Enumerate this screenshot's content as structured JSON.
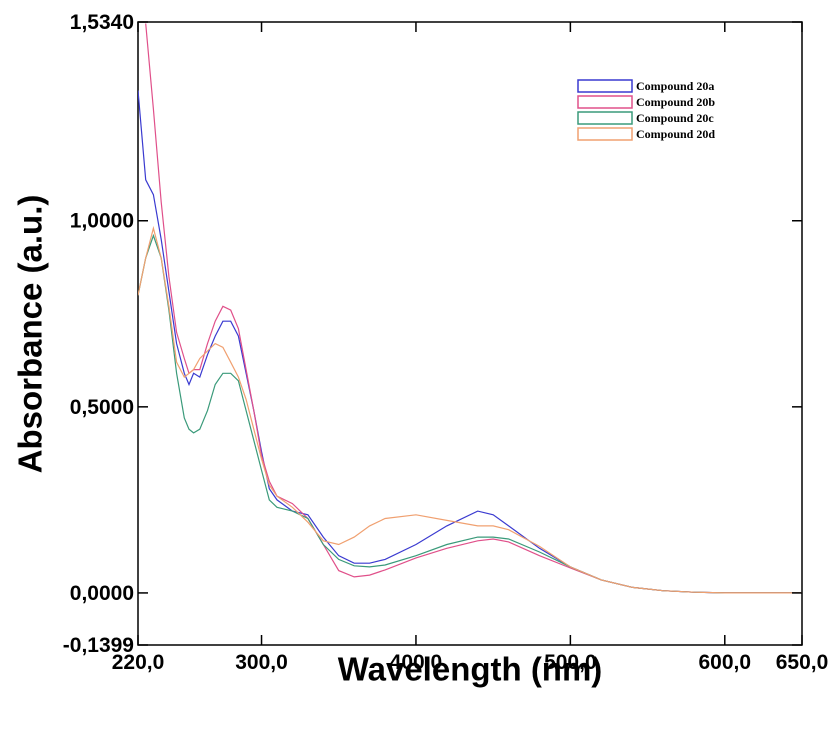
{
  "chart_data": {
    "type": "line",
    "x_label": "Wavelength (nm)",
    "y_label": "Absorbance (a.u.)",
    "xlim": [
      220,
      650
    ],
    "ylim": [
      -0.1399,
      1.534
    ],
    "xticks": [
      {
        "value": 220,
        "label": "220,0"
      },
      {
        "value": 300,
        "label": "300,0"
      },
      {
        "value": 400,
        "label": "400,0"
      },
      {
        "value": 500,
        "label": "500,0"
      },
      {
        "value": 600,
        "label": "600,0"
      },
      {
        "value": 650,
        "label": "650,0"
      }
    ],
    "yticks": [
      {
        "value": -0.1399,
        "label": "-0,1399"
      },
      {
        "value": 0,
        "label": "0,0000"
      },
      {
        "value": 0.5,
        "label": "0,5000"
      },
      {
        "value": 1,
        "label": "1,0000"
      },
      {
        "value": 1.534,
        "label": "1,5340"
      }
    ],
    "x": [
      220,
      225,
      230,
      235,
      240,
      245,
      250,
      253,
      256,
      260,
      265,
      270,
      275,
      280,
      285,
      290,
      295,
      300,
      305,
      310,
      320,
      330,
      340,
      350,
      360,
      370,
      380,
      400,
      420,
      440,
      450,
      460,
      480,
      500,
      520,
      540,
      560,
      580,
      600,
      650
    ],
    "series": [
      {
        "name": "Compound 20a",
        "color": "#3a3ad0",
        "values": [
          1.35,
          1.11,
          1.07,
          0.95,
          0.81,
          0.67,
          0.59,
          0.56,
          0.59,
          0.58,
          0.64,
          0.69,
          0.73,
          0.73,
          0.69,
          0.59,
          0.49,
          0.38,
          0.28,
          0.25,
          0.22,
          0.21,
          0.15,
          0.1,
          0.08,
          0.08,
          0.09,
          0.13,
          0.18,
          0.22,
          0.21,
          0.18,
          0.12,
          0.07,
          0.035,
          0.015,
          0.006,
          0.002,
          0,
          0
        ]
      },
      {
        "name": "Compound 20b",
        "color": "#e0508a",
        "values": [
          null,
          1.53,
          1.3,
          1.05,
          0.85,
          0.7,
          0.63,
          0.59,
          0.6,
          0.6,
          0.67,
          0.73,
          0.77,
          0.76,
          0.71,
          0.6,
          0.49,
          0.37,
          0.3,
          0.26,
          0.24,
          0.2,
          0.13,
          0.06,
          0.043,
          0.048,
          0.062,
          0.094,
          0.12,
          0.14,
          0.145,
          0.137,
          0.1,
          0.067,
          0.035,
          0.015,
          0.006,
          0.002,
          0,
          0
        ]
      },
      {
        "name": "Compound 20c",
        "color": "#3a9a7a",
        "values": [
          0.8,
          0.9,
          0.96,
          0.9,
          0.76,
          0.59,
          0.47,
          0.44,
          0.43,
          0.44,
          0.49,
          0.56,
          0.59,
          0.59,
          0.57,
          0.49,
          0.41,
          0.33,
          0.25,
          0.23,
          0.22,
          0.2,
          0.13,
          0.09,
          0.073,
          0.07,
          0.075,
          0.1,
          0.13,
          0.15,
          0.15,
          0.145,
          0.11,
          0.07,
          0.035,
          0.015,
          0.006,
          0.002,
          0,
          0
        ]
      },
      {
        "name": "Compound 20d",
        "color": "#f0a070",
        "values": [
          0.8,
          0.9,
          0.98,
          0.9,
          0.77,
          0.62,
          0.58,
          0.59,
          0.6,
          0.63,
          0.65,
          0.67,
          0.66,
          0.62,
          0.58,
          0.52,
          0.44,
          0.36,
          0.29,
          0.26,
          0.23,
          0.19,
          0.14,
          0.13,
          0.15,
          0.18,
          0.2,
          0.21,
          0.195,
          0.18,
          0.18,
          0.17,
          0.125,
          0.07,
          0.035,
          0.015,
          0.006,
          0.002,
          0,
          0
        ]
      }
    ]
  }
}
